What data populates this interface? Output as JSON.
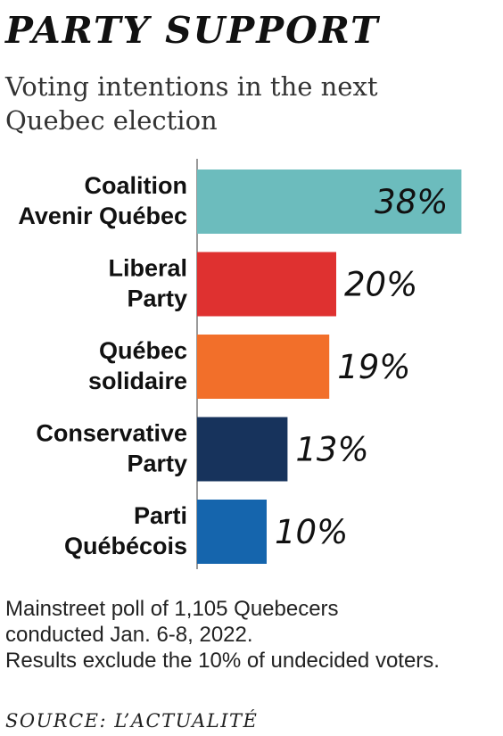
{
  "chart_data": {
    "type": "bar",
    "orientation": "horizontal",
    "title": "PARTY SUPPORT",
    "subtitle": "Voting intentions in the next Quebec election",
    "categories": [
      [
        "Coalition",
        "Avenir Québec"
      ],
      [
        "Liberal",
        "Party"
      ],
      [
        "Québec",
        "solidaire"
      ],
      [
        "Conservative",
        "Party"
      ],
      [
        "Parti",
        "Québécois"
      ]
    ],
    "values": [
      38,
      20,
      19,
      13,
      10
    ],
    "value_labels": [
      "38%",
      "20%",
      "19%",
      "13%",
      "10%"
    ],
    "colors": [
      "#6cbcbd",
      "#df3130",
      "#f26f2a",
      "#17335c",
      "#1565ad"
    ],
    "value_label_colors": [
      "#111111",
      "#111111",
      "#111111",
      "#111111",
      "#111111"
    ],
    "xlim": [
      0,
      40
    ],
    "grid": false,
    "legend": "none"
  },
  "notes": [
    "Mainstreet poll of 1,105 Quebecers",
    "conducted Jan. 6-8, 2022.",
    "Results exclude the 10% of undecided voters."
  ],
  "source": "SOURCE: L’ACTUALITÉ"
}
